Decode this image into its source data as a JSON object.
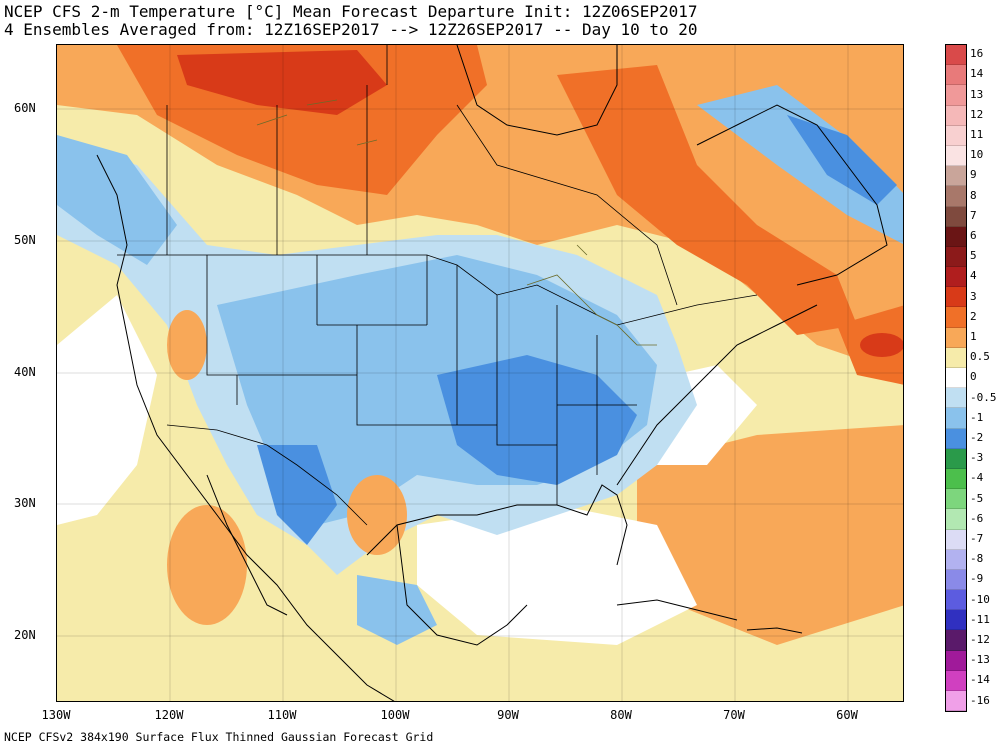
{
  "title": {
    "line1": "NCEP CFS 2-m Temperature [°C] Mean Forecast Departure Init: 12Z06SEP2017",
    "line2": "4 Ensembles Averaged from: 12Z16SEP2017 --> 12Z26SEP2017 -- Day 10 to 20"
  },
  "footer": "NCEP CFSv2 384x190 Surface Flux Thinned Gaussian Forecast Grid",
  "axes": {
    "lat_labels": [
      "60N",
      "50N",
      "40N",
      "30N",
      "20N"
    ],
    "lon_labels": [
      "130W",
      "120W",
      "110W",
      "100W",
      "90W",
      "80W",
      "70W",
      "60W"
    ]
  },
  "colorbar": {
    "labels": [
      "16",
      "14",
      "13",
      "12",
      "11",
      "10",
      "9",
      "8",
      "7",
      "6",
      "5",
      "4",
      "3",
      "2",
      "1",
      "0.5",
      "0",
      "-0.5",
      "-1",
      "-2",
      "-3",
      "-4",
      "-5",
      "-6",
      "-7",
      "-8",
      "-9",
      "-10",
      "-11",
      "-12",
      "-13",
      "-14",
      "-16"
    ],
    "colors": [
      "#d94a4a",
      "#e87a7a",
      "#f09999",
      "#f5b8b8",
      "#f8d0d0",
      "#fae3e3",
      "#c9a59a",
      "#a8786a",
      "#7f4a3e",
      "#6a1515",
      "#8c1a1a",
      "#b01e1e",
      "#d83a18",
      "#f07028",
      "#f8a858",
      "#f6ebaa",
      "#ffffff",
      "#c0dff2",
      "#8ac2ec",
      "#4a90e0",
      "#2a9a4a",
      "#4cbf4c",
      "#7dd67d",
      "#b2e8b2",
      "#dcdcf5",
      "#b2b2f0",
      "#8a8ae8",
      "#5c5ce0",
      "#3030c0",
      "#5a1a6a",
      "#a01a9a",
      "#d040c0",
      "#f0a0e8"
    ]
  },
  "map": {
    "colors": {
      "warm_strong": "#d83a18",
      "warm_mid": "#f07028",
      "warm_light": "#f8a858",
      "warm_pale": "#f6ebaa",
      "neutral": "#ffffff",
      "cool_pale": "#c0dff2",
      "cool_mid": "#8ac2ec",
      "cool_strong": "#4a90e0",
      "coast": "#000000",
      "lakes": "#6b6b2a"
    }
  }
}
